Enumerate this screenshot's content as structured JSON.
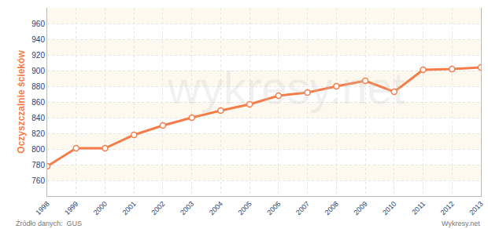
{
  "chart_data": {
    "type": "line",
    "y_label": "Oczyszczalnie ścieków",
    "x": [
      1998,
      1999,
      2000,
      2001,
      2002,
      2003,
      2004,
      2005,
      2006,
      2007,
      2008,
      2009,
      2010,
      2011,
      2012,
      2013
    ],
    "values": [
      778,
      801,
      801,
      818,
      830,
      840,
      849,
      857,
      868,
      872,
      880,
      887,
      873,
      901,
      902,
      904
    ],
    "color": "#f47d4a",
    "marker": "circle",
    "line_style": "solid",
    "xlim": [
      1998,
      2013
    ],
    "xticks": [
      1998,
      1999,
      2000,
      2001,
      2002,
      2003,
      2004,
      2005,
      2006,
      2007,
      2008,
      2009,
      2010,
      2011,
      2012,
      2013
    ],
    "ylim": [
      740,
      980
    ],
    "yticks": [
      760,
      780,
      800,
      820,
      840,
      860,
      880,
      900,
      920,
      940,
      960
    ],
    "grid": true,
    "annotations": {
      "source": "Źródło danych:  GUS",
      "credit": "Wykresy.net",
      "watermark": "wykresy.net"
    }
  }
}
